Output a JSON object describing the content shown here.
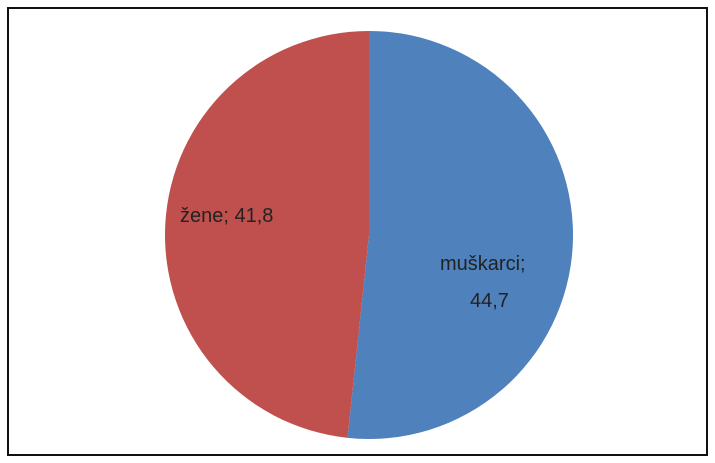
{
  "chart_data": {
    "type": "pie",
    "values": [
      44.7,
      41.8
    ],
    "value_labels": [
      "muškarci; 44,7",
      "žene; 41,8"
    ],
    "colors": [
      "#4f81bd",
      "#c0504d"
    ]
  }
}
